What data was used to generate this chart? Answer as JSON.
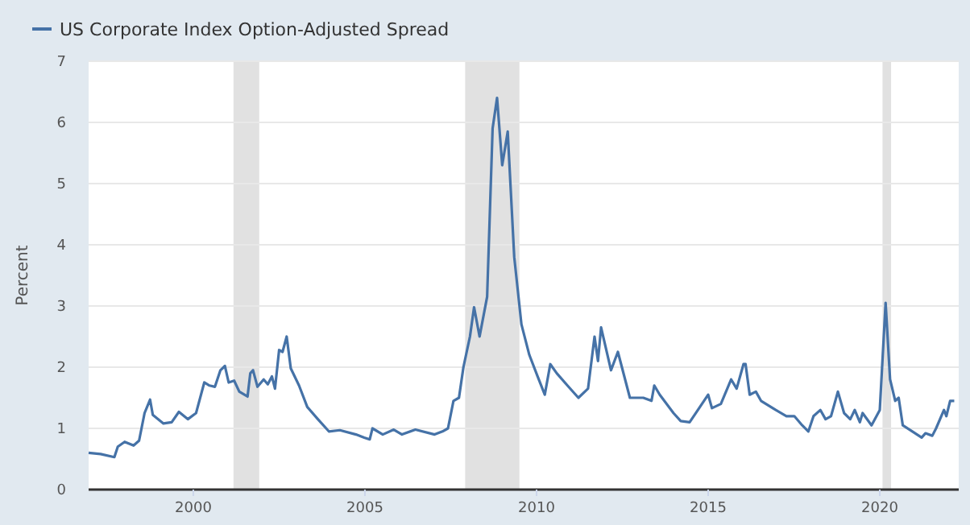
{
  "chart_data": {
    "type": "line",
    "ylabel": "Percent",
    "legend": "top left",
    "grid": "y",
    "xlim": [
      1996.95,
      2022.3
    ],
    "xticks": [
      2000,
      2005,
      2010,
      2015,
      2020
    ],
    "ylim": [
      0,
      7
    ],
    "yticks": [
      0,
      1,
      2,
      3,
      4,
      5,
      6,
      7
    ],
    "bands": [
      {
        "axis": "x",
        "from": 2001.17,
        "to": 2001.92,
        "color": "#e1e1e1"
      },
      {
        "axis": "x",
        "from": 2007.92,
        "to": 2009.5,
        "color": "#e1e1e1"
      },
      {
        "axis": "x",
        "from": 2020.08,
        "to": 2020.33,
        "color": "#e1e1e1"
      }
    ],
    "series": [
      {
        "name": "US Corporate Index Option-Adjusted Spread",
        "color": "#4572a7",
        "x": [
          1996.95,
          1997.3,
          1997.7,
          1997.8,
          1998.0,
          1998.26,
          1998.42,
          1998.58,
          1998.74,
          1998.82,
          1999.13,
          1999.37,
          1999.58,
          1999.84,
          2000.08,
          2000.32,
          2000.47,
          2000.63,
          2000.79,
          2000.92,
          2001.03,
          2001.19,
          2001.34,
          2001.58,
          2001.66,
          2001.74,
          2001.87,
          2002.05,
          2002.17,
          2002.29,
          2002.38,
          2002.5,
          2002.6,
          2002.72,
          2002.84,
          2003.08,
          2003.32,
          2003.63,
          2003.95,
          2004.27,
          2004.74,
          2004.98,
          2005.14,
          2005.22,
          2005.52,
          2005.84,
          2006.08,
          2006.47,
          2007.03,
          2007.26,
          2007.42,
          2007.58,
          2007.74,
          2007.87,
          2008.06,
          2008.18,
          2008.34,
          2008.56,
          2008.72,
          2008.85,
          2009.0,
          2009.16,
          2009.35,
          2009.56,
          2009.79,
          2010.03,
          2010.24,
          2010.4,
          2010.59,
          2010.9,
          2011.22,
          2011.5,
          2011.69,
          2011.79,
          2011.88,
          2012.17,
          2012.37,
          2012.72,
          2013.11,
          2013.35,
          2013.43,
          2013.59,
          2013.99,
          2014.2,
          2014.46,
          2015.0,
          2015.11,
          2015.37,
          2015.67,
          2015.83,
          2016.03,
          2016.09,
          2016.21,
          2016.39,
          2016.54,
          2016.97,
          2017.28,
          2017.51,
          2017.74,
          2017.92,
          2018.07,
          2018.27,
          2018.42,
          2018.58,
          2018.78,
          2018.96,
          2019.14,
          2019.27,
          2019.42,
          2019.5,
          2019.76,
          2020.0,
          2020.17,
          2020.3,
          2020.45,
          2020.55,
          2020.67,
          2020.95,
          2021.22,
          2021.33,
          2021.53,
          2021.64,
          2021.87,
          2021.94,
          2022.05,
          2022.17
        ],
        "values": [
          0.6,
          0.58,
          0.53,
          0.7,
          0.78,
          0.72,
          0.8,
          1.25,
          1.47,
          1.22,
          1.08,
          1.1,
          1.27,
          1.15,
          1.25,
          1.75,
          1.7,
          1.68,
          1.95,
          2.02,
          1.75,
          1.78,
          1.6,
          1.52,
          1.9,
          1.95,
          1.68,
          1.8,
          1.72,
          1.85,
          1.65,
          2.28,
          2.25,
          2.5,
          1.98,
          1.7,
          1.35,
          1.15,
          0.95,
          0.97,
          0.9,
          0.85,
          0.82,
          1.0,
          0.9,
          0.98,
          0.9,
          0.98,
          0.9,
          0.95,
          1.0,
          1.45,
          1.5,
          2.0,
          2.5,
          2.98,
          2.5,
          3.15,
          5.9,
          6.4,
          5.3,
          5.85,
          3.8,
          2.7,
          2.2,
          1.85,
          1.55,
          2.05,
          1.9,
          1.7,
          1.5,
          1.65,
          2.5,
          2.1,
          2.65,
          1.95,
          2.25,
          1.5,
          1.5,
          1.45,
          1.7,
          1.55,
          1.25,
          1.12,
          1.1,
          1.55,
          1.33,
          1.4,
          1.8,
          1.65,
          2.05,
          2.05,
          1.55,
          1.6,
          1.45,
          1.3,
          1.2,
          1.2,
          1.05,
          0.95,
          1.2,
          1.3,
          1.15,
          1.2,
          1.6,
          1.25,
          1.15,
          1.3,
          1.1,
          1.25,
          1.05,
          1.3,
          3.05,
          1.8,
          1.45,
          1.5,
          1.05,
          0.95,
          0.85,
          0.92,
          0.88,
          1.0,
          1.3,
          1.2,
          1.45,
          1.45
        ]
      }
    ]
  }
}
